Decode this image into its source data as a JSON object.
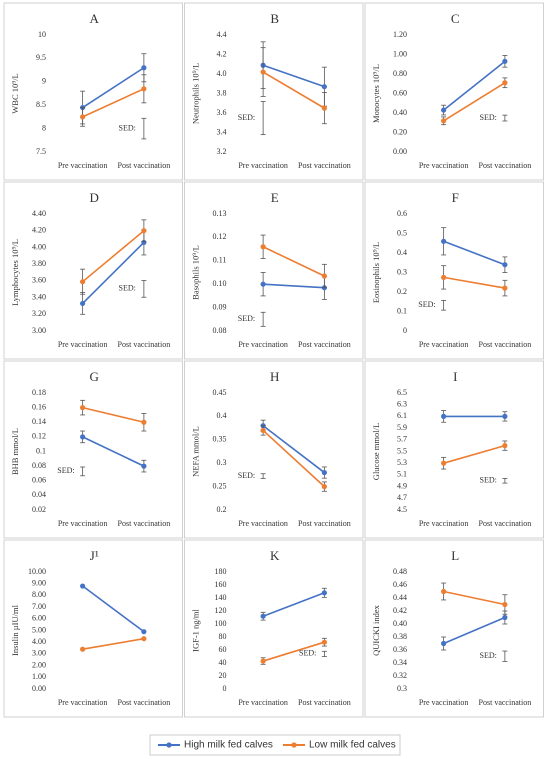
{
  "legend": {
    "series": [
      {
        "name": "High milk fed calves",
        "color": "#4472c4"
      },
      {
        "name": "Low milk fed calves",
        "color": "#ed7d31"
      }
    ]
  },
  "chart_data": [
    {
      "type": "line",
      "title": "A",
      "y_label": "WBC 10⁹/L",
      "categories": [
        "Pre vaccination",
        "Post vaccination"
      ],
      "ylim": [
        7.5,
        10
      ],
      "yticks": [
        7.5,
        8,
        8.5,
        9,
        9.5,
        10
      ],
      "series": [
        {
          "values": [
            8.45,
            9.3
          ],
          "errors": [
            0.35,
            0.3
          ]
        },
        {
          "values": [
            8.25,
            8.85
          ],
          "errors": [
            0.2,
            0.3
          ]
        }
      ],
      "sed": {
        "label": "SED:",
        "value": 0.44
      }
    },
    {
      "type": "line",
      "title": "B",
      "y_label": "Neutrophils 10⁹/L",
      "categories": [
        "Pre vaccination",
        "Post vaccination"
      ],
      "ylim": [
        3.2,
        4.4
      ],
      "yticks": [
        3.2,
        3.4,
        3.6,
        3.8,
        {
          "value": 4,
          "label": "4.0"
        },
        4.2,
        4.4
      ],
      "series": [
        {
          "values": [
            4.09,
            3.87
          ],
          "errors": [
            0.24,
            0.2
          ]
        },
        {
          "values": [
            4.02,
            3.65
          ],
          "errors": [
            0.25,
            0.16
          ]
        }
      ],
      "sed": {
        "label": "SED:",
        "value": 0.34
      }
    },
    {
      "type": "line",
      "title": "C",
      "y_label": "Monocytes 10⁹/L",
      "categories": [
        "Pre vaccination",
        "Post vaccination"
      ],
      "ylim": [
        0,
        1.2
      ],
      "yticks": [
        {
          "value": 0,
          "label": "0.00"
        },
        {
          "value": 0.2,
          "label": "0.20"
        },
        {
          "value": 0.4,
          "label": "0.40"
        },
        {
          "value": 0.6,
          "label": "0.60"
        },
        {
          "value": 0.8,
          "label": "0.80"
        },
        {
          "value": 1,
          "label": "1.00"
        },
        {
          "value": 1.2,
          "label": "1.20"
        }
      ],
      "series": [
        {
          "values": [
            0.43,
            0.93
          ],
          "errors": [
            0.05,
            0.06
          ]
        },
        {
          "values": [
            0.32,
            0.71
          ],
          "errors": [
            0.04,
            0.05
          ]
        }
      ],
      "sed": {
        "label": "SED:",
        "value": 0.06
      }
    },
    {
      "type": "line",
      "title": "D",
      "y_label": "Lymphocytes 10⁹/L",
      "categories": [
        "Pre vaccination",
        "Post vaccination"
      ],
      "ylim": [
        3,
        4.4
      ],
      "yticks": [
        {
          "value": 3,
          "label": "3.00"
        },
        {
          "value": 3.2,
          "label": "3.20"
        },
        {
          "value": 3.4,
          "label": "3.40"
        },
        {
          "value": 3.6,
          "label": "3.60"
        },
        {
          "value": 3.8,
          "label": "3.80"
        },
        {
          "value": 4,
          "label": "4.00"
        },
        {
          "value": 4.2,
          "label": "4.20"
        },
        {
          "value": 4.4,
          "label": "4.40"
        }
      ],
      "series": [
        {
          "values": [
            3.33,
            4.06
          ],
          "errors": [
            0.13,
            0.15
          ]
        },
        {
          "values": [
            3.59,
            4.2
          ],
          "errors": [
            0.15,
            0.13
          ]
        }
      ],
      "sed": {
        "label": "SED:",
        "value": 0.2
      }
    },
    {
      "type": "line",
      "title": "E",
      "y_label": "Basophils 10⁹/L",
      "categories": [
        "Pre vaccination",
        "Post vaccination"
      ],
      "ylim": [
        0.08,
        0.13
      ],
      "yticks": [
        0.08,
        0.09,
        {
          "value": 0.1,
          "label": "0.10"
        },
        0.11,
        0.12,
        0.13
      ],
      "series": [
        {
          "values": [
            0.1,
            0.0985
          ],
          "errors": [
            0.005,
            0.005
          ]
        },
        {
          "values": [
            0.116,
            0.1035
          ],
          "errors": [
            0.005,
            0.005
          ]
        }
      ],
      "sed": {
        "label": "SED:",
        "value": 0.006
      }
    },
    {
      "type": "line",
      "title": "F",
      "y_label": "Eosinophils 10⁹/L",
      "categories": [
        "Pre vaccination",
        "Post vaccination"
      ],
      "ylim": [
        0,
        0.6
      ],
      "yticks": [
        0,
        0.1,
        0.2,
        0.3,
        0.4,
        0.5,
        0.6
      ],
      "series": [
        {
          "values": [
            0.46,
            0.34
          ],
          "errors": [
            0.07,
            0.04
          ]
        },
        {
          "values": [
            0.275,
            0.22
          ],
          "errors": [
            0.06,
            0.04
          ]
        }
      ],
      "sed": {
        "label": "SED:",
        "value": 0.05
      }
    },
    {
      "type": "line",
      "title": "G",
      "y_label": "BHB mmol/L",
      "categories": [
        "Pre vaccination",
        "Post vaccination"
      ],
      "ylim": [
        0.02,
        0.18
      ],
      "yticks": [
        0.02,
        0.04,
        0.06,
        0.08,
        0.1,
        0.12,
        0.14,
        0.16,
        0.18
      ],
      "series": [
        {
          "values": [
            0.12,
            0.08
          ],
          "errors": [
            0.008,
            0.008
          ]
        },
        {
          "values": [
            0.16,
            0.14
          ],
          "errors": [
            0.01,
            0.012
          ]
        }
      ],
      "sed": {
        "label": "SED:",
        "value": 0.012
      }
    },
    {
      "type": "line",
      "title": "H",
      "y_label": "NEFA mmol/L",
      "categories": [
        "Pre vaccination",
        "Post vaccination"
      ],
      "ylim": [
        0.2,
        0.45
      ],
      "yticks": [
        0.2,
        0.25,
        0.3,
        0.35,
        0.4,
        0.45
      ],
      "series": [
        {
          "values": [
            0.38,
            0.28
          ],
          "errors": [
            0.012,
            0.012
          ]
        },
        {
          "values": [
            0.37,
            0.25
          ],
          "errors": [
            0.01,
            0.01
          ]
        }
      ],
      "sed": {
        "label": "SED:",
        "value": 0.01
      }
    },
    {
      "type": "line",
      "title": "I",
      "y_label": "Glucose mmol/L",
      "categories": [
        "Pre vaccination",
        "Post vaccination"
      ],
      "ylim": [
        4.5,
        6.5
      ],
      "yticks": [
        4.5,
        4.7,
        4.9,
        5.1,
        5.3,
        5.5,
        5.7,
        5.9,
        6.1,
        6.3,
        6.5
      ],
      "series": [
        {
          "values": [
            6.1,
            6.1
          ],
          "errors": [
            0.1,
            0.08
          ]
        },
        {
          "values": [
            5.3,
            5.6
          ],
          "errors": [
            0.1,
            0.08
          ]
        }
      ],
      "sed": {
        "label": "SED:",
        "value": 0.08
      }
    },
    {
      "type": "line",
      "title": "J¹",
      "y_label": "Insulin µIU/ml",
      "categories": [
        "Pre vaccination",
        "Post vaccination"
      ],
      "ylim": [
        0,
        10
      ],
      "yticks": [
        {
          "value": 0,
          "label": "0.00"
        },
        {
          "value": 1,
          "label": "1.00"
        },
        {
          "value": 2,
          "label": "2.00"
        },
        {
          "value": 3,
          "label": "3.00"
        },
        {
          "value": 4,
          "label": "4.00"
        },
        {
          "value": 5,
          "label": "5.00"
        },
        {
          "value": 6,
          "label": "6.00"
        },
        {
          "value": 7,
          "label": "7.00"
        },
        {
          "value": 8,
          "label": "8.00"
        },
        {
          "value": 9,
          "label": "9.00"
        },
        {
          "value": 10,
          "label": "10.00"
        }
      ],
      "series": [
        {
          "values": [
            8.8,
            4.9
          ]
        },
        {
          "values": [
            3.4,
            4.3
          ]
        }
      ]
    },
    {
      "type": "line",
      "title": "K",
      "y_label": "IGF-1 ng/ml",
      "categories": [
        "Pre vaccination",
        "Post vaccination"
      ],
      "ylim": [
        0,
        180
      ],
      "yticks": [
        0,
        20,
        40,
        60,
        80,
        100,
        120,
        140,
        160,
        180
      ],
      "series": [
        {
          "values": [
            112,
            148
          ],
          "errors": [
            6,
            7
          ]
        },
        {
          "values": [
            43,
            72
          ],
          "errors": [
            5,
            6
          ]
        }
      ],
      "sed": {
        "label": "SED:",
        "value": 8
      }
    },
    {
      "type": "line",
      "title": "L",
      "y_label": "QUICKI index",
      "categories": [
        "Pre vaccination",
        "Post vaccination"
      ],
      "ylim": [
        0.3,
        0.48
      ],
      "yticks": [
        0.3,
        0.32,
        0.34,
        0.36,
        0.38,
        {
          "value": 0.4,
          "label": "0.40"
        },
        0.42,
        0.44,
        0.46,
        0.48
      ],
      "series": [
        {
          "values": [
            0.37,
            0.41
          ],
          "errors": [
            0.01,
            0.01
          ]
        },
        {
          "values": [
            0.45,
            0.43
          ],
          "errors": [
            0.013,
            0.015
          ]
        }
      ],
      "sed": {
        "label": "SED:",
        "value": 0.016
      }
    }
  ]
}
